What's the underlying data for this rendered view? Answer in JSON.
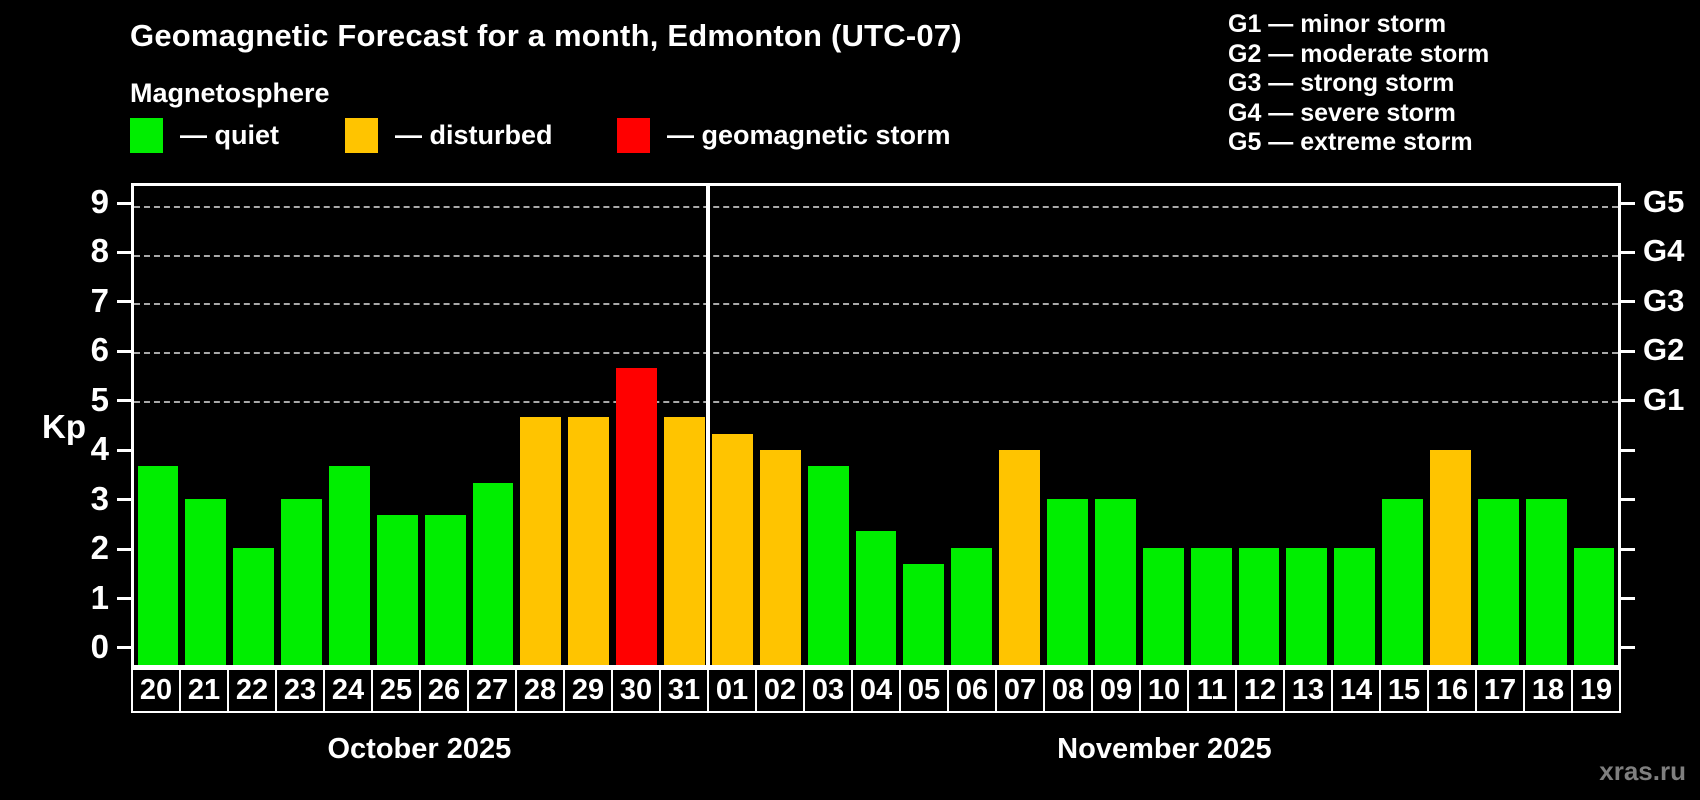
{
  "title": "Geomagnetic Forecast for a month, Edmonton (UTC-07)",
  "subtitle": "Magnetosphere",
  "legend": {
    "items": [
      {
        "key": "quiet",
        "label": "— quiet"
      },
      {
        "key": "disturbed",
        "label": "— disturbed"
      },
      {
        "key": "storm",
        "label": "— geomagnetic storm"
      }
    ]
  },
  "g_legend": {
    "lines": [
      "G1 — minor storm",
      "G2 — moderate storm",
      "G3 — strong storm",
      "G4 — severe storm",
      "G5 — extreme storm"
    ]
  },
  "y_axis": {
    "label": "Kp",
    "ticks": [
      0,
      1,
      2,
      3,
      4,
      5,
      6,
      7,
      8,
      9
    ]
  },
  "right_axis": {
    "labels": [
      {
        "text": "G1",
        "kp": 5
      },
      {
        "text": "G2",
        "kp": 6
      },
      {
        "text": "G3",
        "kp": 7
      },
      {
        "text": "G4",
        "kp": 8
      },
      {
        "text": "G5",
        "kp": 9
      }
    ]
  },
  "months": {
    "october": {
      "label": "October 2025",
      "days": 12
    },
    "november": {
      "label": "November 2025",
      "days": 19
    }
  },
  "watermark": "xras.ru",
  "colors": {
    "quiet": "#00ee00",
    "disturbed": "#ffc400",
    "storm": "#ff0000",
    "background": "#000000",
    "axis": "#ffffff",
    "grid": "#a8a8a8",
    "watermark": "#7f7f7f"
  },
  "chart_data": {
    "type": "bar",
    "title": "Geomagnetic Forecast for a month, Edmonton (UTC-07)",
    "xlabel": "",
    "ylabel": "Kp",
    "ylim": [
      -0.4,
      9.4
    ],
    "grid": "horizontal dashed lines at Kp 5,6,7,8,9 only",
    "legend_position": "top-left",
    "gridlines_kp": [
      5,
      6,
      7,
      8,
      9
    ],
    "month_divider_after_index": 11,
    "categories": [
      "Oct 20",
      "Oct 21",
      "Oct 22",
      "Oct 23",
      "Oct 24",
      "Oct 25",
      "Oct 26",
      "Oct 27",
      "Oct 28",
      "Oct 29",
      "Oct 30",
      "Oct 31",
      "Nov 01",
      "Nov 02",
      "Nov 03",
      "Nov 04",
      "Nov 05",
      "Nov 06",
      "Nov 07",
      "Nov 08",
      "Nov 09",
      "Nov 10",
      "Nov 11",
      "Nov 12",
      "Nov 13",
      "Nov 14",
      "Nov 15",
      "Nov 16",
      "Nov 17",
      "Nov 18",
      "Nov 19"
    ],
    "dates": [
      "20",
      "21",
      "22",
      "23",
      "24",
      "25",
      "26",
      "27",
      "28",
      "29",
      "30",
      "31",
      "01",
      "02",
      "03",
      "04",
      "05",
      "06",
      "07",
      "08",
      "09",
      "10",
      "11",
      "12",
      "13",
      "14",
      "15",
      "16",
      "17",
      "18",
      "19"
    ],
    "values": [
      3.67,
      3,
      2,
      3,
      3.67,
      2.67,
      2.67,
      3.33,
      4.67,
      4.67,
      5.67,
      4.67,
      4.33,
      4,
      3.67,
      2.33,
      1.67,
      2,
      4,
      3,
      3,
      2,
      2,
      2,
      2,
      2,
      3,
      4,
      3,
      3,
      2
    ],
    "statuses": [
      "quiet",
      "quiet",
      "quiet",
      "quiet",
      "quiet",
      "quiet",
      "quiet",
      "quiet",
      "disturbed",
      "disturbed",
      "storm",
      "disturbed",
      "disturbed",
      "disturbed",
      "quiet",
      "quiet",
      "quiet",
      "quiet",
      "disturbed",
      "quiet",
      "quiet",
      "quiet",
      "quiet",
      "quiet",
      "quiet",
      "quiet",
      "quiet",
      "disturbed",
      "quiet",
      "quiet",
      "quiet"
    ]
  }
}
